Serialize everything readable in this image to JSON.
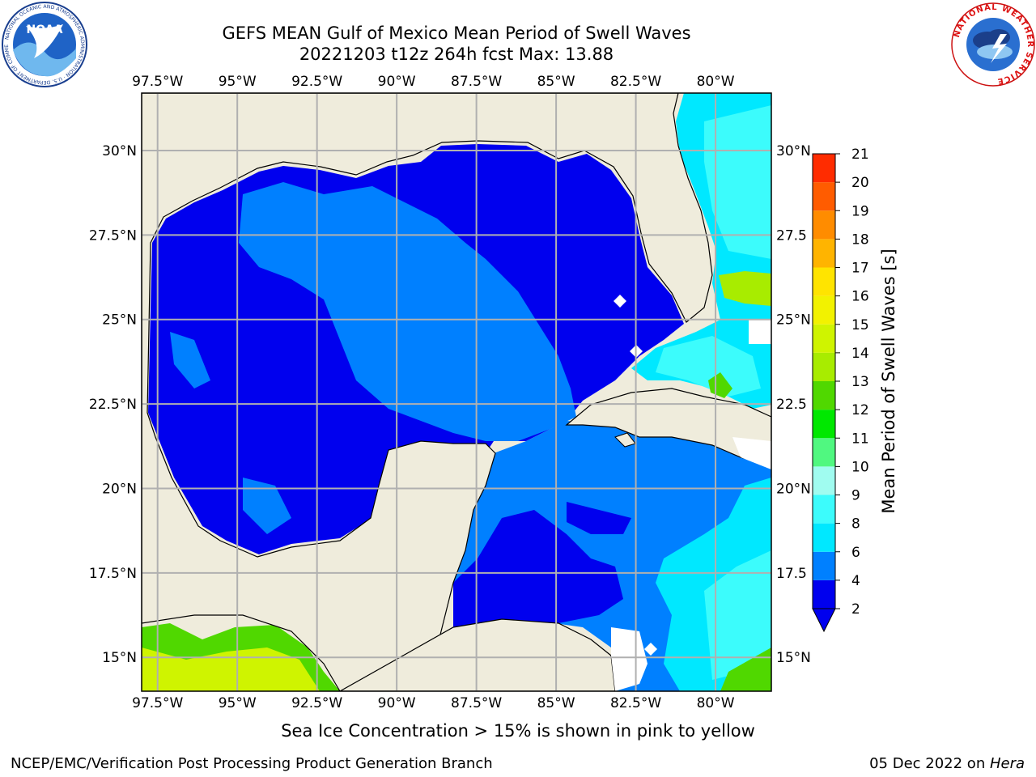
{
  "header": {
    "title_line1": "GEFS MEAN Gulf of Mexico Mean Period of Swell Waves",
    "title_line2": "20221203 t12z 264h fcst   Max: 13.88"
  },
  "map": {
    "lon_ticks": [
      "97.5°W",
      "95°W",
      "92.5°W",
      "90°W",
      "87.5°W",
      "85°W",
      "82.5°W",
      "80°W"
    ],
    "lat_ticks_left": [
      "30°N",
      "27.5°N",
      "25°N",
      "22.5°N",
      "20°N",
      "17.5°N",
      "15°N"
    ],
    "lat_ticks_right": [
      "30°N",
      "27.5",
      "25°N",
      "22.5",
      "20°N",
      "17.5",
      "15°N"
    ],
    "lon_range": [
      -98,
      -78.25
    ],
    "lat_range": [
      14,
      31.7
    ],
    "colors": {
      "land": "#efecdc",
      "coast": "#000000",
      "grid": "#b0b0b0",
      "missing": "#ffffff"
    }
  },
  "colorbar": {
    "label": "Mean Period of Swell Waves [s]",
    "tick_labels": [
      "2",
      "4",
      "6",
      "8",
      "9",
      "10",
      "11",
      "12",
      "13",
      "14",
      "15",
      "16",
      "17",
      "18",
      "19",
      "20",
      "21"
    ],
    "colors": [
      "#0000ee",
      "#0080ff",
      "#00e8ff",
      "#3cfcfc",
      "#a0fcf0",
      "#50f880",
      "#00e800",
      "#50d800",
      "#a8ec00",
      "#cff400",
      "#f2f200",
      "#ffe400",
      "#ffb400",
      "#ff8c00",
      "#ff5c00",
      "#ff2c00",
      "#ff0000"
    ]
  },
  "footer": {
    "note": "Sea Ice Concentration > 15% is shown in pink to yellow",
    "credit": "NCEP/EMC/Verification Post Processing Product Generation Branch",
    "date_prefix": "05 Dec 2022 on ",
    "date_machine": "Hera"
  },
  "logos": {
    "noaa_text": "NOAA",
    "noaa_ring": "NATIONAL OCEANIC AND ATMOSPHERIC ADMINISTRATION · U.S. DEPARTMENT OF COMMERCE",
    "nws_ring": "NATIONAL WEATHER SERVICE"
  }
}
